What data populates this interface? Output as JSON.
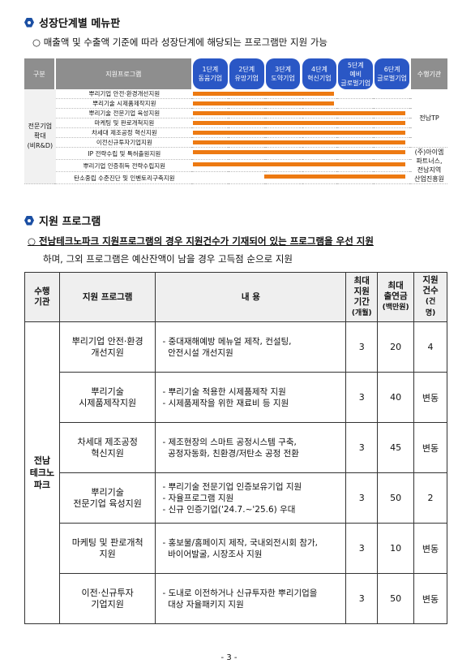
{
  "section1": {
    "title": "성장단계별 메뉴판",
    "note": "○ 매출액 및 수출액 기준에 따라 성장단계에 해당되는 프로그램만 지원 가능"
  },
  "stage_table": {
    "headers": {
      "category": "구분",
      "program": "지원프로그램",
      "stages": [
        {
          "l1": "1단계",
          "l2": "동윰기업",
          "l3": ""
        },
        {
          "l1": "2단계",
          "l2": "유망기업",
          "l3": ""
        },
        {
          "l1": "3단계",
          "l2": "도약기업",
          "l3": ""
        },
        {
          "l1": "4단계",
          "l2": "혁신기업",
          "l3": ""
        },
        {
          "l1": "5단계",
          "l2": "예비",
          "l3": "글로벌기업"
        },
        {
          "l1": "6단계",
          "l2": "글로벌기업",
          "l3": ""
        }
      ],
      "org": "수행기관"
    },
    "category": [
      "전문기업",
      "확대",
      "(비R&D)"
    ],
    "org1": "전남TP",
    "org2": [
      "(주)아이엠",
      "파트너스,",
      "전남지역",
      "산업진흥원"
    ],
    "rows": [
      {
        "name": "뿌리기업 안전·환경개선지원",
        "from": 1,
        "to": 4
      },
      {
        "name": "뿌리기술 시제품제작지원",
        "from": 1,
        "to": 4
      },
      {
        "name": "뿌리기술 전문기업 육성지원",
        "from": 1,
        "to": 6
      },
      {
        "name": "마케팅 및 판로개척지원",
        "from": 1,
        "to": 6
      },
      {
        "name": "차세대 제조공정 혁신지원",
        "from": 1,
        "to": 6
      },
      {
        "name": "이전신규투자기업지원",
        "from": 1,
        "to": 6
      },
      {
        "name": "IP 전략수립 및 특허출원지원",
        "from": 1,
        "to": 6
      },
      {
        "name": "뿌리기업 인증취득 전략수립지원",
        "from": 1,
        "to": 6
      },
      {
        "name": "탄소중립 수준진단 및 인벤토리구축지원",
        "from": 3,
        "to": 6
      }
    ]
  },
  "section2": {
    "title": "지원 프로그램",
    "note1": "○ 전남테크노파크 지원프로그램의 경우 지원건수가 기재되어 있는 프로그램을 우선 지원",
    "note2": "하며, 그외 프로그램은 예산잔액이 남을 경우 고득점 순으로 지원"
  },
  "program_table": {
    "headers": {
      "org": [
        "수행",
        "기관"
      ],
      "program": "지원 프로그램",
      "content": "내     용",
      "period": [
        "최대",
        "지원",
        "기간",
        "(개월)"
      ],
      "amount": [
        "최대",
        "출연금",
        "(백만원)"
      ],
      "count": [
        "지원",
        "건수",
        "(건",
        "명)"
      ]
    },
    "org": [
      "전남",
      "테크노",
      "파크"
    ],
    "rows": [
      {
        "program": [
          "뿌리기업 안전·환경",
          "개선지원"
        ],
        "content": [
          "- 중대재해예방 메뉴얼 제작, 컨설팅,",
          "  안전시설 개선지원"
        ],
        "period": "3",
        "amount": "20",
        "count": "4"
      },
      {
        "program": [
          "뿌리기술",
          "시제품제작지원"
        ],
        "content": [
          "- 뿌리기술 적용한 시제품제작 지원",
          "- 시제품제작을 위한 재료비 등 지원"
        ],
        "period": "3",
        "amount": "40",
        "count": "변동"
      },
      {
        "program": [
          "차세대 제조공정",
          "혁신지원"
        ],
        "content": [
          "- 제조현장의 스마트 공정시스템 구축,",
          "  공정자동화, 친환경/저탄소 공정 전환"
        ],
        "period": "3",
        "amount": "45",
        "count": "변동"
      },
      {
        "program": [
          "뿌리기술",
          "전문기업 육성지원"
        ],
        "content": [
          "- 뿌리기술 전문기업 인증보유기업 지원",
          "- 자율프로그램 지원",
          "- 신규 인증기업('24.7.~'25.6) 우대"
        ],
        "period": "3",
        "amount": "50",
        "count": "2"
      },
      {
        "program": [
          "마케팅 및 판로개척",
          "지원"
        ],
        "content": [
          "- 홍보물/홈페이지 제작, 국내외전시회 참가,",
          "  바이어발굴, 시장조사 지원"
        ],
        "period": "3",
        "amount": "10",
        "count": "변동"
      },
      {
        "program": [
          "이전·신규투자",
          "기업지원"
        ],
        "content": [
          "- 도내로 이전하거나 신규투자한 뿌리기업을",
          "  대상 자율패키지 지원"
        ],
        "period": "3",
        "amount": "50",
        "count": "변동"
      }
    ]
  },
  "page_number": "- 3 -",
  "colors": {
    "accent": "#1b4fa3",
    "stage_header": "#2a57c5",
    "bar": "#ed7a12",
    "gray_header": "#8e8e8e"
  }
}
